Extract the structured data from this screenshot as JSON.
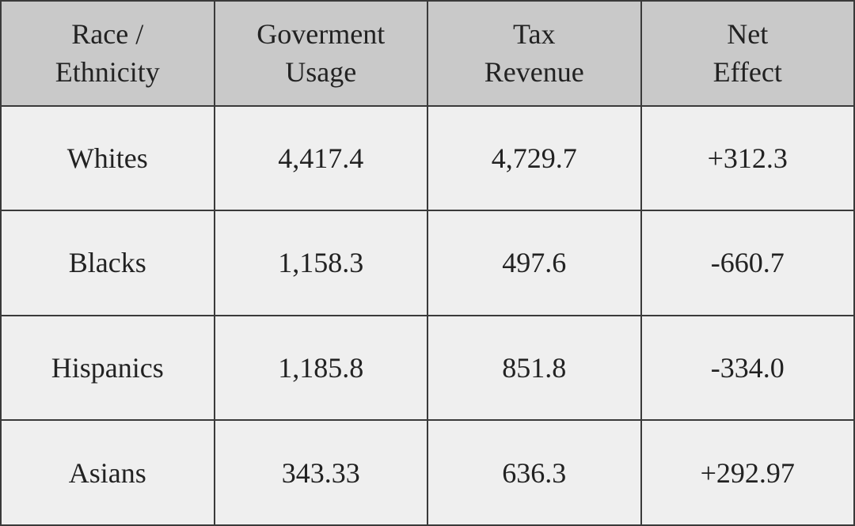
{
  "table": {
    "header": [
      [
        "Race /",
        "Ethnicity"
      ],
      [
        "Goverment",
        "Usage"
      ],
      [
        "Tax",
        "Revenue"
      ],
      [
        "Net",
        "Effect"
      ]
    ],
    "rows": [
      [
        "Whites",
        "4,417.4",
        "4,729.7",
        "+312.3"
      ],
      [
        "Blacks",
        "1,158.3",
        "497.6",
        "-660.7"
      ],
      [
        "Hispanics",
        "1,185.8",
        "851.8",
        "-334.0"
      ],
      [
        "Asians",
        "343.33",
        "636.3",
        "+292.97"
      ]
    ]
  }
}
